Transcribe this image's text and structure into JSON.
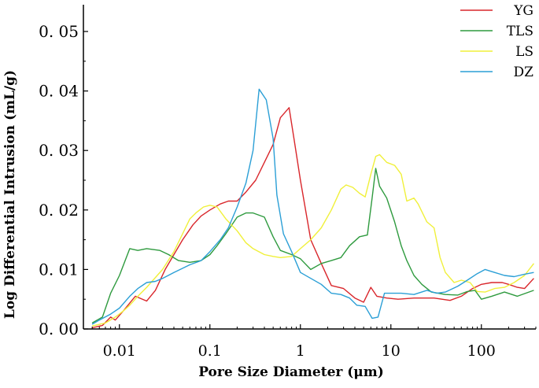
{
  "chart_data": {
    "type": "line",
    "xlabel": "Pore Size Diameter (μm)",
    "ylabel": "Log Differential Intrusion (mL/g)",
    "xscale": "log",
    "xlim": [
      0.004,
      400
    ],
    "ylim": [
      0,
      0.055
    ],
    "x_ticks": [
      0.01,
      0.1,
      1,
      10,
      100
    ],
    "x_tick_labels": [
      "0.01",
      "0.1",
      "1",
      "10",
      "100"
    ],
    "y_ticks": [
      0,
      0.01,
      0.02,
      0.03,
      0.04,
      0.05
    ],
    "y_tick_labels": [
      "0. 00",
      "0. 01",
      "0. 02",
      "0. 03",
      "0. 04",
      "0. 05"
    ],
    "legend_position": "top-right",
    "series": [
      {
        "name": "YG",
        "color": "#d9262b",
        "points": [
          [
            0.005,
            0.0002
          ],
          [
            0.0065,
            0.0006
          ],
          [
            0.008,
            0.002
          ],
          [
            0.009,
            0.0015
          ],
          [
            0.011,
            0.003
          ],
          [
            0.015,
            0.0055
          ],
          [
            0.02,
            0.0047
          ],
          [
            0.025,
            0.0065
          ],
          [
            0.032,
            0.01
          ],
          [
            0.04,
            0.0125
          ],
          [
            0.05,
            0.015
          ],
          [
            0.065,
            0.0175
          ],
          [
            0.08,
            0.019
          ],
          [
            0.1,
            0.02
          ],
          [
            0.13,
            0.021
          ],
          [
            0.16,
            0.0215
          ],
          [
            0.2,
            0.0215
          ],
          [
            0.25,
            0.023
          ],
          [
            0.32,
            0.025
          ],
          [
            0.4,
            0.028
          ],
          [
            0.5,
            0.031
          ],
          [
            0.6,
            0.0355
          ],
          [
            0.75,
            0.0372
          ],
          [
            0.85,
            0.032
          ],
          [
            1.0,
            0.025
          ],
          [
            1.3,
            0.015
          ],
          [
            1.7,
            0.011
          ],
          [
            2.2,
            0.0073
          ],
          [
            3.0,
            0.0068
          ],
          [
            4.0,
            0.0052
          ],
          [
            5.0,
            0.0045
          ],
          [
            6.0,
            0.007
          ],
          [
            7.0,
            0.0055
          ],
          [
            9.0,
            0.0052
          ],
          [
            12,
            0.005
          ],
          [
            18,
            0.0052
          ],
          [
            30,
            0.0052
          ],
          [
            45,
            0.0048
          ],
          [
            60,
            0.0055
          ],
          [
            80,
            0.0068
          ],
          [
            100,
            0.0075
          ],
          [
            130,
            0.0078
          ],
          [
            170,
            0.0078
          ],
          [
            200,
            0.0075
          ],
          [
            250,
            0.007
          ],
          [
            300,
            0.0068
          ],
          [
            380,
            0.0085
          ]
        ]
      },
      {
        "name": "TLS",
        "color": "#2e9a3e",
        "points": [
          [
            0.005,
            0.001
          ],
          [
            0.0065,
            0.002
          ],
          [
            0.008,
            0.006
          ],
          [
            0.01,
            0.009
          ],
          [
            0.013,
            0.0135
          ],
          [
            0.016,
            0.0132
          ],
          [
            0.02,
            0.0135
          ],
          [
            0.028,
            0.0132
          ],
          [
            0.035,
            0.0125
          ],
          [
            0.045,
            0.0115
          ],
          [
            0.06,
            0.0112
          ],
          [
            0.08,
            0.0115
          ],
          [
            0.1,
            0.0125
          ],
          [
            0.12,
            0.014
          ],
          [
            0.15,
            0.016
          ],
          [
            0.2,
            0.0188
          ],
          [
            0.25,
            0.0195
          ],
          [
            0.3,
            0.0195
          ],
          [
            0.4,
            0.0188
          ],
          [
            0.5,
            0.0155
          ],
          [
            0.6,
            0.0132
          ],
          [
            0.8,
            0.0125
          ],
          [
            1.0,
            0.0118
          ],
          [
            1.3,
            0.01
          ],
          [
            1.7,
            0.011
          ],
          [
            2.2,
            0.0115
          ],
          [
            2.8,
            0.012
          ],
          [
            3.5,
            0.014
          ],
          [
            4.5,
            0.0155
          ],
          [
            5.5,
            0.0158
          ],
          [
            6.2,
            0.022
          ],
          [
            6.8,
            0.027
          ],
          [
            7.5,
            0.024
          ],
          [
            9,
            0.022
          ],
          [
            11,
            0.018
          ],
          [
            13,
            0.014
          ],
          [
            15,
            0.0115
          ],
          [
            18,
            0.009
          ],
          [
            22,
            0.0075
          ],
          [
            28,
            0.0062
          ],
          [
            40,
            0.0058
          ],
          [
            55,
            0.0057
          ],
          [
            70,
            0.0063
          ],
          [
            85,
            0.0065
          ],
          [
            100,
            0.005
          ],
          [
            130,
            0.0055
          ],
          [
            180,
            0.0062
          ],
          [
            250,
            0.0055
          ],
          [
            380,
            0.0065
          ]
        ]
      },
      {
        "name": "LS",
        "color": "#f0f03a",
        "points": [
          [
            0.005,
            0.0005
          ],
          [
            0.007,
            0.001
          ],
          [
            0.009,
            0.002
          ],
          [
            0.011,
            0.003
          ],
          [
            0.013,
            0.004
          ],
          [
            0.016,
            0.0055
          ],
          [
            0.02,
            0.007
          ],
          [
            0.03,
            0.01
          ],
          [
            0.04,
            0.013
          ],
          [
            0.05,
            0.016
          ],
          [
            0.06,
            0.0185
          ],
          [
            0.07,
            0.0195
          ],
          [
            0.085,
            0.0205
          ],
          [
            0.1,
            0.0208
          ],
          [
            0.12,
            0.0205
          ],
          [
            0.15,
            0.0185
          ],
          [
            0.2,
            0.0165
          ],
          [
            0.25,
            0.0145
          ],
          [
            0.3,
            0.0135
          ],
          [
            0.4,
            0.0125
          ],
          [
            0.5,
            0.0122
          ],
          [
            0.6,
            0.012
          ],
          [
            0.8,
            0.0122
          ],
          [
            1.0,
            0.0135
          ],
          [
            1.3,
            0.015
          ],
          [
            1.7,
            0.017
          ],
          [
            2.2,
            0.02
          ],
          [
            2.8,
            0.0235
          ],
          [
            3.2,
            0.0242
          ],
          [
            3.8,
            0.0238
          ],
          [
            4.5,
            0.0228
          ],
          [
            5.2,
            0.0222
          ],
          [
            6.0,
            0.026
          ],
          [
            6.8,
            0.029
          ],
          [
            7.5,
            0.0293
          ],
          [
            9,
            0.028
          ],
          [
            11,
            0.0275
          ],
          [
            13,
            0.026
          ],
          [
            15,
            0.0215
          ],
          [
            18,
            0.022
          ],
          [
            20,
            0.021
          ],
          [
            25,
            0.018
          ],
          [
            30,
            0.017
          ],
          [
            35,
            0.012
          ],
          [
            40,
            0.0095
          ],
          [
            50,
            0.0078
          ],
          [
            60,
            0.0082
          ],
          [
            75,
            0.0078
          ],
          [
            90,
            0.0063
          ],
          [
            110,
            0.0062
          ],
          [
            140,
            0.0068
          ],
          [
            180,
            0.007
          ],
          [
            230,
            0.0078
          ],
          [
            300,
            0.009
          ],
          [
            380,
            0.011
          ]
        ]
      },
      {
        "name": "DZ",
        "color": "#2b9fd6",
        "points": [
          [
            0.005,
            0.0008
          ],
          [
            0.006,
            0.0015
          ],
          [
            0.008,
            0.0025
          ],
          [
            0.01,
            0.0035
          ],
          [
            0.013,
            0.0055
          ],
          [
            0.016,
            0.0068
          ],
          [
            0.02,
            0.0078
          ],
          [
            0.025,
            0.008
          ],
          [
            0.03,
            0.0085
          ],
          [
            0.04,
            0.0095
          ],
          [
            0.05,
            0.0102
          ],
          [
            0.06,
            0.0108
          ],
          [
            0.08,
            0.0115
          ],
          [
            0.1,
            0.013
          ],
          [
            0.13,
            0.015
          ],
          [
            0.16,
            0.017
          ],
          [
            0.2,
            0.0205
          ],
          [
            0.25,
            0.0245
          ],
          [
            0.3,
            0.03
          ],
          [
            0.35,
            0.0403
          ],
          [
            0.42,
            0.0385
          ],
          [
            0.5,
            0.032
          ],
          [
            0.55,
            0.0225
          ],
          [
            0.65,
            0.016
          ],
          [
            0.8,
            0.013
          ],
          [
            1.0,
            0.0095
          ],
          [
            1.3,
            0.0085
          ],
          [
            1.7,
            0.0075
          ],
          [
            2.2,
            0.006
          ],
          [
            2.8,
            0.0058
          ],
          [
            3.5,
            0.0052
          ],
          [
            4.2,
            0.004
          ],
          [
            5.2,
            0.0038
          ],
          [
            6.2,
            0.0018
          ],
          [
            7.2,
            0.002
          ],
          [
            8.5,
            0.006
          ],
          [
            10,
            0.006
          ],
          [
            13,
            0.006
          ],
          [
            18,
            0.0058
          ],
          [
            25,
            0.0065
          ],
          [
            32,
            0.006
          ],
          [
            40,
            0.0062
          ],
          [
            55,
            0.0072
          ],
          [
            70,
            0.0082
          ],
          [
            90,
            0.0093
          ],
          [
            110,
            0.01
          ],
          [
            140,
            0.0095
          ],
          [
            180,
            0.009
          ],
          [
            230,
            0.0088
          ],
          [
            300,
            0.0092
          ],
          [
            380,
            0.0095
          ]
        ]
      }
    ]
  }
}
